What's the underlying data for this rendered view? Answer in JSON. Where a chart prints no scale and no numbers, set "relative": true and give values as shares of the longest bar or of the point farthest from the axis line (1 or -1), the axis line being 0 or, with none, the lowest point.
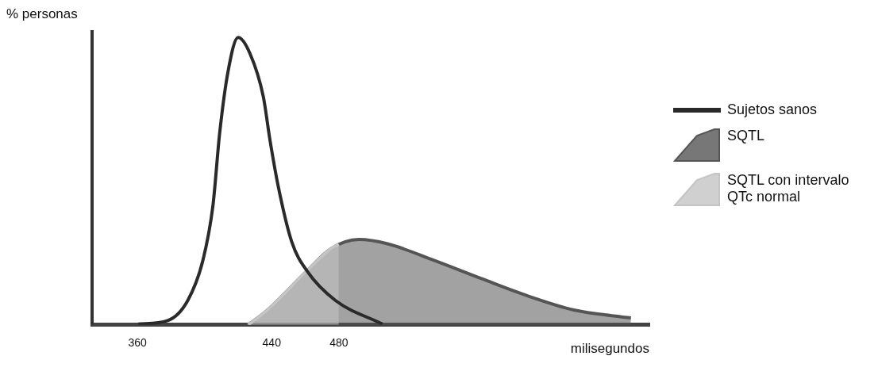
{
  "chart_data": {
    "type": "line",
    "ylabel": "% personas",
    "xlabel": "milisegundos",
    "relative": true,
    "xlim": [
      333,
      665
    ],
    "xticks": [
      360,
      440,
      480
    ],
    "legend": "right",
    "marker": "none",
    "series": [
      {
        "name": "Sujetos sanos",
        "type": "line",
        "color": "#2a2a2a",
        "x": [
          360.4,
          378,
          390,
          399,
          405,
          409,
          414,
          420,
          427,
          435,
          439,
          444,
          452,
          461,
          478,
          506
        ],
        "values": [
          0.003,
          0.015,
          0.085,
          0.224,
          0.415,
          0.667,
          0.882,
          1,
          0.945,
          0.794,
          0.642,
          0.479,
          0.288,
          0.188,
          0.085,
          0.003
        ]
      },
      {
        "name": "SQTL",
        "type": "area",
        "color": "#555555",
        "x": [
          426,
          437.5,
          461,
          475,
          492,
          509,
          537,
          565,
          593,
          620,
          654
        ],
        "values": [
          0,
          0.052,
          0.188,
          0.264,
          0.297,
          0.282,
          0.224,
          0.161,
          0.1,
          0.052,
          0.024
        ]
      },
      {
        "name": "SQTL con intervalo QTc normal",
        "type": "area",
        "color": "#c4c4c4",
        "x": [
          426,
          437.5,
          461,
          475,
          480
        ],
        "values": [
          0,
          0.052,
          0.188,
          0.264,
          0.28
        ]
      }
    ]
  }
}
